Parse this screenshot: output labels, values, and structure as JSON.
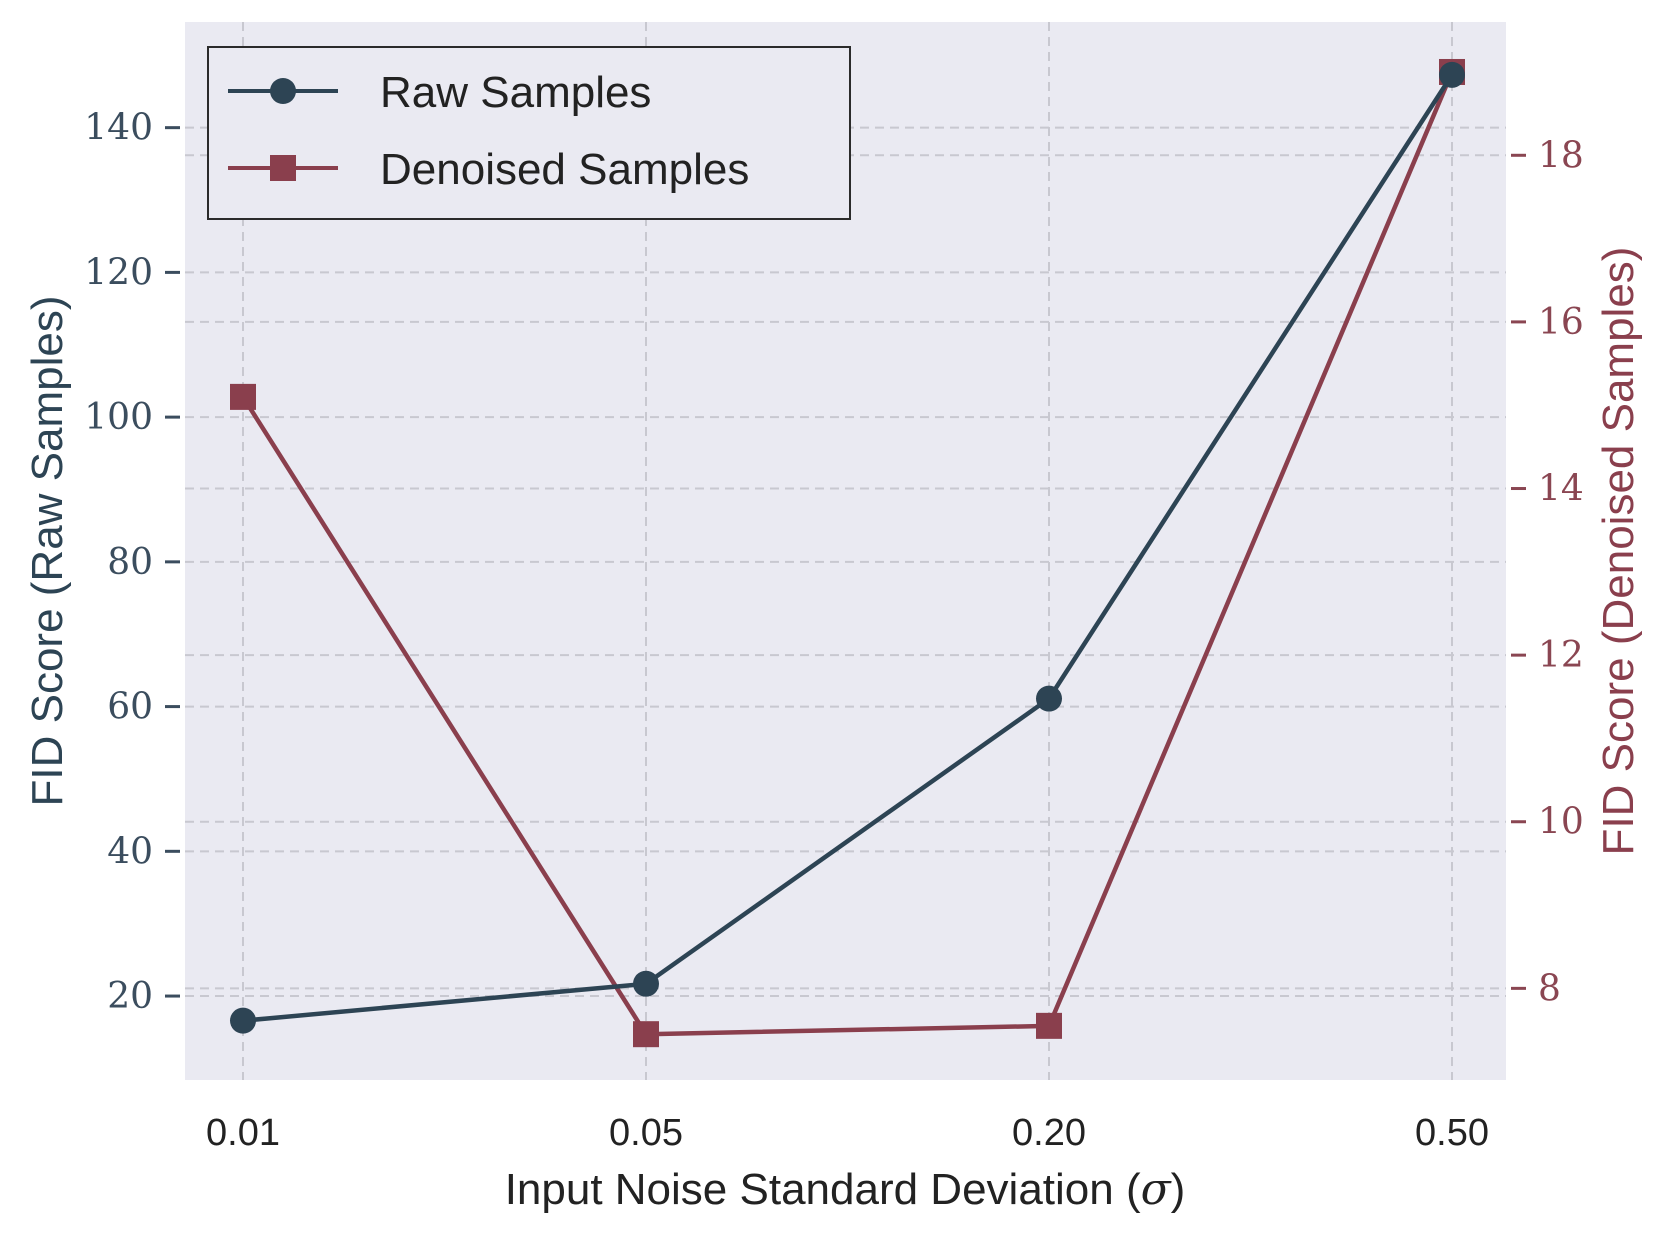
{
  "chart_data": {
    "type": "line",
    "categories": [
      "0.01",
      "0.05",
      "0.20",
      "0.50"
    ],
    "xlabel_main": "Input Noise Standard Deviation (",
    "xlabel_symbol": "σ",
    "xlabel_close": ")",
    "series": [
      {
        "name": "Raw Samples",
        "axis": "left",
        "marker": "circle",
        "color": "#2d4454",
        "values": [
          16.6,
          21.7,
          61.1,
          147.3
        ]
      },
      {
        "name": "Denoised Samples",
        "axis": "right",
        "marker": "square",
        "color": "#8a3f4d",
        "values": [
          15.1,
          7.45,
          7.55,
          19.0
        ]
      }
    ],
    "y_left": {
      "label": "FID Score (Raw Samples)",
      "ticks": [
        20,
        40,
        60,
        80,
        100,
        120,
        140
      ],
      "tick_labels": [
        "20",
        "40",
        "60",
        "80",
        "100",
        "120",
        "140"
      ],
      "range": [
        8.4,
        154.6
      ],
      "color": "#3b4d5e"
    },
    "y_right": {
      "label": "FID Score (Denoised Samples)",
      "ticks": [
        8,
        10,
        12,
        14,
        16,
        18
      ],
      "tick_labels": [
        "8",
        "10",
        "12",
        "14",
        "16",
        "18"
      ],
      "range": [
        6.9,
        19.6
      ],
      "color": "#8a4652"
    },
    "grid": true,
    "legend_position": "top-left"
  }
}
